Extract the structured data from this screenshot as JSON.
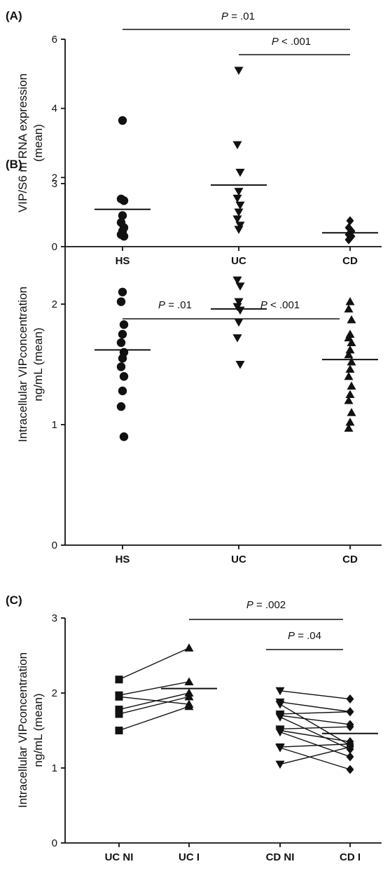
{
  "chart_data": [
    {
      "type": "scatter",
      "panel_label": "(A)",
      "ylabel": "VIP/S6 m RNA expression\n(mean)",
      "xlabel": "",
      "ylim": [
        0,
        6
      ],
      "yticks": [
        0,
        2,
        4,
        6
      ],
      "categories": [
        "HS",
        "UC",
        "CD"
      ],
      "series": [
        {
          "category": "HS",
          "marker": "circle",
          "values": [
            3.65,
            1.38,
            1.33,
            0.9,
            0.7,
            0.55,
            0.45,
            0.35,
            0.3
          ],
          "mean": 1.08
        },
        {
          "category": "UC",
          "marker": "triangle-down",
          "values": [
            5.1,
            2.95,
            2.15,
            1.6,
            1.4,
            1.2,
            1.0,
            0.8,
            0.62
          ],
          "mean": 1.78
        },
        {
          "category": "CD",
          "marker": "diamond",
          "values": [
            0.75,
            0.55,
            0.45,
            0.4,
            0.35,
            0.3,
            0.25,
            0.2
          ],
          "mean": 0.4
        }
      ],
      "comparisons": [
        {
          "from": "HS",
          "to": "CD",
          "label_p": "P",
          "label_rest": " = .01"
        },
        {
          "from": "UC",
          "to": "CD",
          "label_p": "P",
          "label_rest": " < .001"
        }
      ]
    },
    {
      "type": "scatter",
      "panel_label": "(B)",
      "ylabel": "Intracellular VIPconcentration\nng/mL (mean)",
      "xlabel": "",
      "ylim": [
        0,
        3
      ],
      "yticks": [
        0,
        1,
        2,
        3
      ],
      "categories": [
        "HS",
        "UC",
        "CD"
      ],
      "series": [
        {
          "category": "HS",
          "marker": "circle",
          "values": [
            2.1,
            2.02,
            1.83,
            1.75,
            1.68,
            1.6,
            1.55,
            1.48,
            1.4,
            1.28,
            1.15,
            0.9
          ],
          "mean": 1.62
        },
        {
          "category": "UC",
          "marker": "triangle-down",
          "values": [
            2.62,
            2.2,
            2.15,
            2.02,
            1.98,
            1.95,
            1.85,
            1.72,
            1.5
          ],
          "mean": 1.96
        },
        {
          "category": "CD",
          "marker": "triangle-up",
          "values": [
            2.02,
            1.96,
            1.87,
            1.75,
            1.72,
            1.68,
            1.62,
            1.58,
            1.52,
            1.46,
            1.4,
            1.32,
            1.25,
            1.2,
            1.1,
            1.02,
            0.97
          ],
          "mean": 1.54
        }
      ],
      "comparisons": [
        {
          "from": "HS",
          "to": "UC",
          "label_p": "P",
          "label_rest": " = .01"
        },
        {
          "from": "UC",
          "to": "CD",
          "label_p": "P",
          "label_rest": " < .001"
        }
      ]
    },
    {
      "type": "scatter",
      "panel_label": "(C)",
      "ylabel": "Intracellular VIPconcentration\nng/mL (mean)",
      "xlabel": "",
      "ylim": [
        0,
        3
      ],
      "yticks": [
        0,
        1,
        2,
        3
      ],
      "categories": [
        "UC NI",
        "UC I",
        "CD NI",
        "CD I"
      ],
      "paired": [
        {
          "from": "UC NI",
          "to": "UC I",
          "marker_from": "square",
          "marker_to": "triangle-up",
          "pairs": [
            [
              2.18,
              2.6
            ],
            [
              1.97,
              2.15
            ],
            [
              1.95,
              1.85
            ],
            [
              1.78,
              2.0
            ],
            [
              1.72,
              1.95
            ],
            [
              1.5,
              1.82
            ]
          ],
          "mean_to": 2.06
        },
        {
          "from": "CD NI",
          "to": "CD I",
          "marker_from": "triangle-down",
          "marker_to": "diamond",
          "pairs": [
            [
              2.03,
              1.92
            ],
            [
              1.88,
              1.75
            ],
            [
              1.85,
              1.3
            ],
            [
              1.72,
              1.75
            ],
            [
              1.7,
              1.58
            ],
            [
              1.68,
              1.25
            ],
            [
              1.52,
              1.55
            ],
            [
              1.5,
              1.35
            ],
            [
              1.48,
              1.15
            ],
            [
              1.28,
              1.32
            ],
            [
              1.27,
              0.98
            ],
            [
              1.05,
              1.28
            ]
          ],
          "mean_to": 1.46
        }
      ],
      "comparisons": [
        {
          "from": "UC I",
          "to": "CD I",
          "label_p": "P",
          "label_rest": " = .002"
        },
        {
          "from": "CD NI",
          "to": "CD I",
          "label_p": "P",
          "label_rest": " = .04"
        }
      ]
    }
  ]
}
